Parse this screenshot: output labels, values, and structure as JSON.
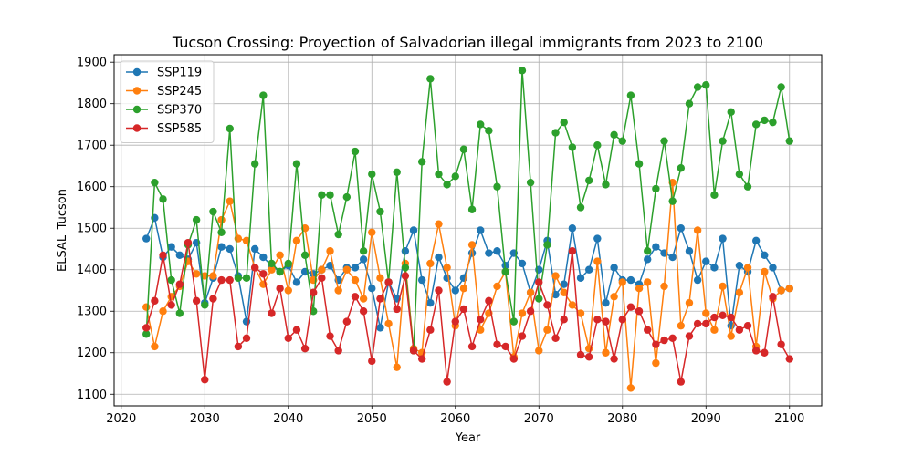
{
  "chart_data": {
    "type": "line",
    "title": "Tucson Crossing: Proyection of Salvadorian illegal immigrants from 2023 to 2100",
    "xlabel": "Year",
    "ylabel": "ELSAL_Tucson",
    "xlim": [
      2019.15,
      2103.85
    ],
    "ylim": [
      1072,
      1918
    ],
    "xticks": [
      2020,
      2030,
      2040,
      2050,
      2060,
      2070,
      2080,
      2090,
      2100
    ],
    "yticks": [
      1100,
      1200,
      1300,
      1400,
      1500,
      1600,
      1700,
      1800,
      1900
    ],
    "grid": true,
    "legend_position": "upper-left",
    "x_start": 2023,
    "series": [
      {
        "name": "SSP119",
        "color": "#1f77b4",
        "values": [
          1475,
          1525,
          1430,
          1455,
          1435,
          1425,
          1465,
          1320,
          1380,
          1455,
          1450,
          1385,
          1275,
          1450,
          1430,
          1410,
          1395,
          1410,
          1370,
          1395,
          1390,
          1400,
          1410,
          1375,
          1405,
          1405,
          1425,
          1355,
          1260,
          1370,
          1330,
          1445,
          1495,
          1375,
          1320,
          1430,
          1380,
          1350,
          1380,
          1440,
          1495,
          1440,
          1445,
          1410,
          1440,
          1415,
          1345,
          1400,
          1470,
          1340,
          1365,
          1500,
          1380,
          1400,
          1475,
          1320,
          1405,
          1375,
          1375,
          1365,
          1425,
          1455,
          1440,
          1430,
          1500,
          1445,
          1375,
          1420,
          1405,
          1475,
          1265,
          1410,
          1395,
          1470,
          1435,
          1405,
          1350,
          1355
        ]
      },
      {
        "name": "SSP245",
        "color": "#ff7f0e",
        "values": [
          1310,
          1215,
          1300,
          1335,
          1360,
          1420,
          1390,
          1385,
          1385,
          1520,
          1565,
          1475,
          1470,
          1405,
          1365,
          1400,
          1435,
          1350,
          1470,
          1500,
          1375,
          1400,
          1445,
          1350,
          1400,
          1375,
          1330,
          1490,
          1380,
          1270,
          1165,
          1415,
          1210,
          1200,
          1415,
          1510,
          1405,
          1265,
          1355,
          1460,
          1255,
          1295,
          1360,
          1395,
          1190,
          1295,
          1345,
          1205,
          1255,
          1385,
          1345,
          1315,
          1295,
          1210,
          1420,
          1200,
          1335,
          1370,
          1115,
          1355,
          1370,
          1175,
          1360,
          1610,
          1265,
          1320,
          1495,
          1295,
          1255,
          1360,
          1240,
          1345,
          1405,
          1215,
          1395,
          1330,
          1350,
          1355
        ]
      },
      {
        "name": "SSP370",
        "color": "#2ca02c",
        "values": [
          1245,
          1610,
          1570,
          1375,
          1295,
          1460,
          1520,
          1315,
          1540,
          1490,
          1740,
          1380,
          1380,
          1655,
          1820,
          1415,
          1395,
          1415,
          1655,
          1435,
          1300,
          1580,
          1580,
          1485,
          1575,
          1685,
          1445,
          1630,
          1540,
          1370,
          1635,
          1405,
          1205,
          1660,
          1860,
          1630,
          1605,
          1625,
          1690,
          1545,
          1750,
          1735,
          1600,
          1395,
          1275,
          1880,
          1610,
          1330,
          1460,
          1730,
          1755,
          1695,
          1550,
          1615,
          1700,
          1605,
          1725,
          1710,
          1820,
          1655,
          1445,
          1595,
          1710,
          1565,
          1645,
          1800,
          1840,
          1845,
          1580,
          1710,
          1780,
          1630,
          1600,
          1750,
          1760,
          1755,
          1840,
          1710
        ]
      },
      {
        "name": "SSP585",
        "color": "#d62728",
        "values": [
          1260,
          1325,
          1435,
          1315,
          1365,
          1465,
          1325,
          1135,
          1330,
          1375,
          1375,
          1215,
          1235,
          1405,
          1390,
          1295,
          1355,
          1235,
          1255,
          1210,
          1345,
          1380,
          1240,
          1205,
          1275,
          1335,
          1300,
          1180,
          1330,
          1370,
          1305,
          1385,
          1205,
          1185,
          1255,
          1350,
          1130,
          1275,
          1305,
          1215,
          1280,
          1325,
          1220,
          1215,
          1185,
          1240,
          1300,
          1370,
          1315,
          1235,
          1280,
          1445,
          1195,
          1190,
          1280,
          1275,
          1185,
          1280,
          1310,
          1300,
          1255,
          1220,
          1230,
          1235,
          1130,
          1240,
          1270,
          1270,
          1285,
          1290,
          1285,
          1255,
          1265,
          1205,
          1200,
          1335,
          1220,
          1185
        ]
      }
    ]
  }
}
